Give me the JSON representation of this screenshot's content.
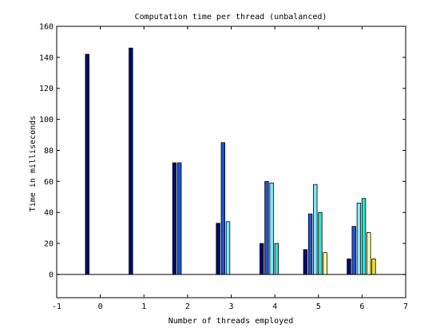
{
  "chart_data": {
    "type": "bar",
    "title": "Computation time per thread (unbalanced)",
    "xlabel": "Number of threads employed",
    "ylabel": "Time in milliseconds",
    "xlim": [
      -1,
      7
    ],
    "ylim": [
      -15,
      160
    ],
    "xticks": [
      "-1",
      "0",
      "1",
      "2",
      "3",
      "4",
      "5",
      "6",
      "7"
    ],
    "yticks": [
      "0",
      "20",
      "40",
      "60",
      "80",
      "100",
      "120",
      "140",
      "160"
    ],
    "grid": false,
    "legend": "none",
    "baseline": 0,
    "thread_colors": [
      "#000a6e",
      "#1f52d6",
      "#7fe6ff",
      "#33e0c8",
      "#ffffa0",
      "#f0e020",
      "#e8501a",
      "#9b1010"
    ],
    "series": [
      {
        "x": 0,
        "values": [
          142
        ]
      },
      {
        "x": 1,
        "values": [
          146
        ]
      },
      {
        "x": 2,
        "values": [
          72,
          72
        ]
      },
      {
        "x": 3,
        "values": [
          33,
          85,
          34
        ]
      },
      {
        "x": 4,
        "values": [
          20,
          60,
          59,
          20
        ]
      },
      {
        "x": 5,
        "values": [
          16,
          39,
          58,
          40,
          14
        ]
      },
      {
        "x": 6,
        "values": [
          10,
          31,
          46,
          49,
          27,
          10
        ]
      }
    ]
  }
}
